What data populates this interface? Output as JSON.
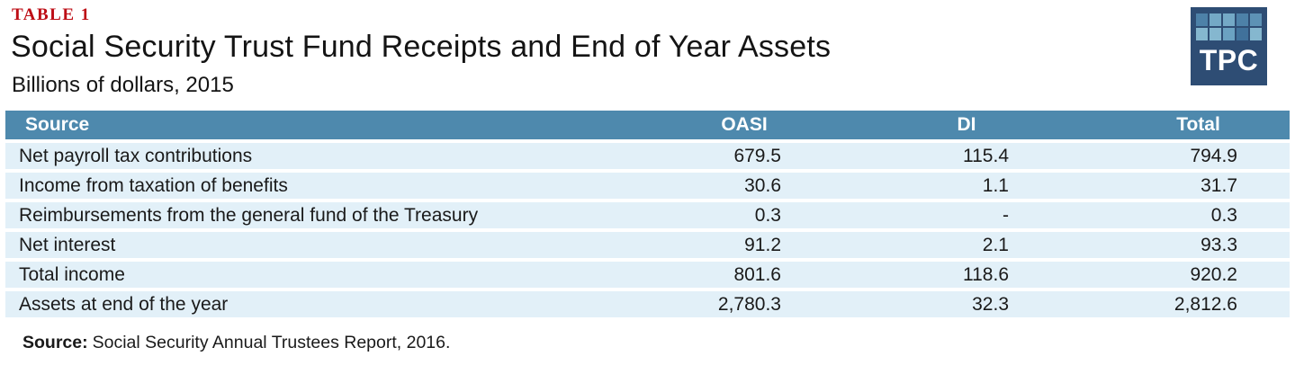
{
  "header": {
    "table_label": "TABLE 1",
    "title": "Social Security Trust Fund Receipts and End of Year Assets",
    "subtitle": "Billions of dollars, 2015"
  },
  "logo": {
    "text": "TPC",
    "bg_color": "#2e4d74",
    "square_colors": [
      "#4d81a8",
      "#74a9c6",
      "#74a9c6",
      "#4d81a8",
      "#5d92b5",
      "#85b7cf",
      "#85b7cf",
      "#6ba2c2",
      "#40719b",
      "#85b7cf"
    ]
  },
  "table": {
    "columns": [
      "Source",
      "OASI",
      "DI",
      "Total"
    ],
    "rows": [
      {
        "label": "Net payroll tax contributions",
        "oasi": "679.5",
        "di": "115.4",
        "total": "794.9"
      },
      {
        "label": "Income from taxation of benefits",
        "oasi": "30.6",
        "di": "1.1",
        "total": "31.7"
      },
      {
        "label": "Reimbursements from the general fund of the Treasury",
        "oasi": "0.3",
        "di": "-",
        "total": "0.3"
      },
      {
        "label": "Net interest",
        "oasi": "91.2",
        "di": "2.1",
        "total": "93.3"
      },
      {
        "label": "Total income",
        "oasi": "801.6",
        "di": "118.6",
        "total": "920.2"
      },
      {
        "label": "Assets at end of the year",
        "oasi": "2,780.3",
        "di": "32.3",
        "total": "2,812.6"
      }
    ]
  },
  "footer": {
    "source_label": "Source:",
    "source_text": "Social Security Annual Trustees Report, 2016."
  },
  "colors": {
    "header_bg": "#4e89ad",
    "row_bg": "#e2f0f8",
    "table_label_red": "#bd0d15",
    "logo_navy": "#2e4d74",
    "text": "#1a1a1a"
  },
  "chart_data": {
    "type": "table",
    "title": "Social Security Trust Fund Receipts and End of Year Assets",
    "subtitle": "Billions of dollars, 2015",
    "columns": [
      "Source",
      "OASI",
      "DI",
      "Total"
    ],
    "rows": [
      [
        "Net payroll tax contributions",
        679.5,
        115.4,
        794.9
      ],
      [
        "Income from taxation of benefits",
        30.6,
        1.1,
        31.7
      ],
      [
        "Reimbursements from the general fund of the Treasury",
        0.3,
        null,
        0.3
      ],
      [
        "Net interest",
        91.2,
        2.1,
        93.3
      ],
      [
        "Total income",
        801.6,
        118.6,
        920.2
      ],
      [
        "Assets at end of the year",
        2780.3,
        32.3,
        2812.6
      ]
    ],
    "source": "Social Security Annual Trustees Report, 2016."
  }
}
